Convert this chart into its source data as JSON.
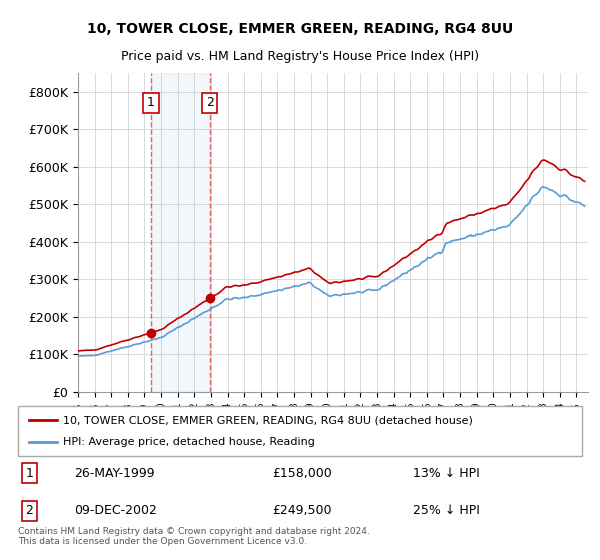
{
  "title1": "10, TOWER CLOSE, EMMER GREEN, READING, RG4 8UU",
  "title2": "Price paid vs. HM Land Registry's House Price Index (HPI)",
  "ylabel": "",
  "ylim": [
    0,
    850000
  ],
  "yticks": [
    0,
    100000,
    200000,
    300000,
    400000,
    500000,
    600000,
    700000,
    800000
  ],
  "ytick_labels": [
    "£0",
    "£100K",
    "£200K",
    "£300K",
    "£400K",
    "£500K",
    "£600K",
    "£700K",
    "£800K"
  ],
  "hpi_color": "#5b9bd5",
  "price_color": "#c00000",
  "sale1_date": 1999.4,
  "sale1_price": 158000,
  "sale2_date": 2002.93,
  "sale2_price": 249500,
  "legend1": "10, TOWER CLOSE, EMMER GREEN, READING, RG4 8UU (detached house)",
  "legend2": "HPI: Average price, detached house, Reading",
  "annotation1_label": "1",
  "annotation1_text": "26-MAY-1999",
  "annotation1_price": "£158,000",
  "annotation1_hpi": "13% ↓ HPI",
  "annotation2_label": "2",
  "annotation2_text": "09-DEC-2002",
  "annotation2_price": "£249,500",
  "annotation2_hpi": "25% ↓ HPI",
  "footer": "Contains HM Land Registry data © Crown copyright and database right 2024.\nThis data is licensed under the Open Government Licence v3.0.",
  "background_color": "#ffffff",
  "grid_color": "#cccccc"
}
